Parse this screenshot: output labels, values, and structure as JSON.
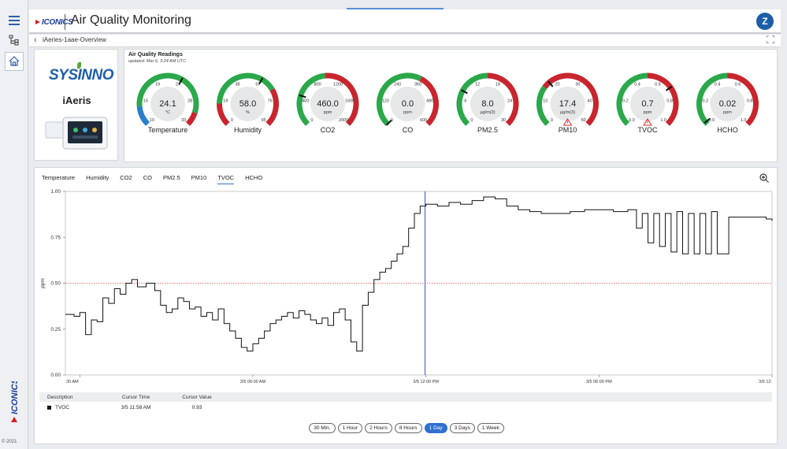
{
  "header": {
    "logo_text": "ICONICS",
    "title": "Air Quality Monitoring",
    "avatar_initial": "Z"
  },
  "breadcrumb": {
    "text": "iAeries-1aae-Overview"
  },
  "device": {
    "brand": "SYSINNO",
    "name": "iAeris"
  },
  "readings": {
    "title": "Air Quality Readings",
    "updated": "updated: Mar 6, 3:24 AM UTC",
    "gauges": [
      {
        "id": "temperature",
        "label": "Temperature",
        "value": "24.1",
        "unit": "°C",
        "min": 10,
        "max": 33,
        "ticks": [
          "10",
          "15",
          "19",
          "24",
          "28",
          "33"
        ],
        "fraction": 0.61,
        "segments": [
          [
            "#2a7fc9",
            0.15
          ],
          [
            "#2aa84a",
            0.75
          ],
          [
            "#c8252d",
            0.1
          ]
        ],
        "warning": false
      },
      {
        "id": "humidity",
        "label": "Humidity",
        "value": "58.0",
        "unit": "%",
        "min": 0,
        "max": 95,
        "ticks": [
          "0",
          "19",
          "38",
          "57",
          "76",
          "95"
        ],
        "fraction": 0.61,
        "segments": [
          [
            "#c8252d",
            0.17
          ],
          [
            "#2aa84a",
            0.55
          ],
          [
            "#c8252d",
            0.28
          ]
        ],
        "warning": false
      },
      {
        "id": "co2",
        "label": "CO2",
        "value": "460.0",
        "unit": "ppm",
        "min": 0,
        "max": 2000,
        "ticks": [
          "0",
          "400",
          "800",
          "1200",
          "1600",
          "2000"
        ],
        "fraction": 0.23,
        "segments": [
          [
            "#2aa84a",
            0.48
          ],
          [
            "#c8252d",
            0.52
          ]
        ],
        "warning": false
      },
      {
        "id": "co",
        "label": "CO",
        "value": "0.0",
        "unit": "ppm",
        "min": 0,
        "max": 600,
        "ticks": [
          "0",
          "120",
          "240",
          "360",
          "480",
          "600"
        ],
        "fraction": 0.0,
        "segments": [
          [
            "#2aa84a",
            0.6
          ],
          [
            "#c8252d",
            0.4
          ]
        ],
        "warning": false
      },
      {
        "id": "pm25",
        "label": "PM2.5",
        "value": "8.0",
        "unit": "µg/m(3)",
        "min": 0,
        "max": 30,
        "ticks": [
          "0",
          "6",
          "12",
          "18",
          "24",
          "30"
        ],
        "fraction": 0.27,
        "segments": [
          [
            "#2aa84a",
            0.5
          ],
          [
            "#c8252d",
            0.5
          ]
        ],
        "warning": false
      },
      {
        "id": "pm10",
        "label": "PM10",
        "value": "17.4",
        "unit": "µg/m(3)",
        "min": 0,
        "max": 50,
        "ticks": [
          "0",
          "10",
          "20",
          "30",
          "40",
          "50"
        ],
        "fraction": 0.35,
        "segments": [
          [
            "#2aa84a",
            0.3
          ],
          [
            "#c8252d",
            0.7
          ]
        ],
        "warning": true
      },
      {
        "id": "tvoc",
        "label": "TVOC",
        "value": "0.7",
        "unit": "ppm",
        "min": 0,
        "max": 1.0,
        "ticks": [
          "0.0",
          "0.2",
          "0.4",
          "0.6",
          "0.8",
          "1.0"
        ],
        "fraction": 0.7,
        "segments": [
          [
            "#2aa84a",
            0.5
          ],
          [
            "#c8252d",
            0.5
          ]
        ],
        "warning": true
      },
      {
        "id": "hcho",
        "label": "HCHO",
        "value": "0.02",
        "unit": "ppm",
        "min": 0,
        "max": 1.0,
        "ticks": [
          "0.0",
          "0.2",
          "0.4",
          "0.6",
          "0.8",
          "1.0"
        ],
        "fraction": 0.02,
        "segments": [
          [
            "#2aa84a",
            0.5
          ],
          [
            "#c8252d",
            0.5
          ]
        ],
        "warning": false
      }
    ]
  },
  "trend": {
    "tabs": [
      "Temperature",
      "Humidity",
      "CO2",
      "CO",
      "PM2.5",
      "PM10",
      "TVOC",
      "HCHO"
    ],
    "active_tab": "TVOC",
    "table": {
      "headers": [
        "Description",
        "Cursor Time",
        "Cursor Value"
      ],
      "rows": [
        {
          "description": "TVOC",
          "time": "3/5 11:58 AM",
          "value": "0.93"
        }
      ]
    },
    "ranges": [
      "30 Min.",
      "1 Hour",
      "2 Hours",
      "8 Hours",
      "1 Day",
      "3 Days",
      "1 Week"
    ],
    "selected_range": "1 Day"
  },
  "footer": {
    "copyright": "© 2021"
  },
  "chart_data": {
    "type": "line",
    "series": [
      {
        "values": []
      }
    ],
    "x_tick_labels": [
      "30 AM",
      "3/5 06:00 AM",
      "3/5 12:00 PM",
      "3/5 06:00 PM",
      "3/6 12:"
    ],
    "x_ticks_hours": [
      0,
      6,
      12,
      18,
      24
    ],
    "x_range_hours": [
      -0.5,
      24
    ],
    "ylabel": "ppm",
    "ylim": [
      0,
      1.0
    ],
    "y_ticks": [
      "0.00",
      "0.25",
      "0.50",
      "0.75",
      "1.00"
    ],
    "reference_line": {
      "value": 0.5,
      "color": "#e05050",
      "style": "dotted"
    },
    "cursor": {
      "x_hours": 11.97,
      "color": "#3b4fc4"
    },
    "line_color": "#111111",
    "points_hours_value": [
      [
        -0.5,
        0.33
      ],
      [
        -0.2,
        0.32
      ],
      [
        0.0,
        0.34
      ],
      [
        0.2,
        0.22
      ],
      [
        0.4,
        0.3
      ],
      [
        0.6,
        0.29
      ],
      [
        0.8,
        0.42
      ],
      [
        1.0,
        0.39
      ],
      [
        1.2,
        0.47
      ],
      [
        1.4,
        0.44
      ],
      [
        1.6,
        0.5
      ],
      [
        1.8,
        0.52
      ],
      [
        2.0,
        0.48
      ],
      [
        2.3,
        0.5
      ],
      [
        2.6,
        0.46
      ],
      [
        2.8,
        0.38
      ],
      [
        3.0,
        0.34
      ],
      [
        3.2,
        0.36
      ],
      [
        3.4,
        0.42
      ],
      [
        3.6,
        0.4
      ],
      [
        3.8,
        0.36
      ],
      [
        4.0,
        0.37
      ],
      [
        4.2,
        0.32
      ],
      [
        4.4,
        0.34
      ],
      [
        4.6,
        0.3
      ],
      [
        4.8,
        0.36
      ],
      [
        5.0,
        0.28
      ],
      [
        5.2,
        0.24
      ],
      [
        5.4,
        0.2
      ],
      [
        5.6,
        0.15
      ],
      [
        5.8,
        0.13
      ],
      [
        6.0,
        0.17
      ],
      [
        6.2,
        0.2
      ],
      [
        6.4,
        0.24
      ],
      [
        6.6,
        0.28
      ],
      [
        6.8,
        0.3
      ],
      [
        7.0,
        0.32
      ],
      [
        7.2,
        0.34
      ],
      [
        7.4,
        0.31
      ],
      [
        7.6,
        0.35
      ],
      [
        7.8,
        0.33
      ],
      [
        8.0,
        0.3
      ],
      [
        8.2,
        0.28
      ],
      [
        8.4,
        0.31
      ],
      [
        8.6,
        0.27
      ],
      [
        8.8,
        0.34
      ],
      [
        9.0,
        0.36
      ],
      [
        9.2,
        0.3
      ],
      [
        9.4,
        0.18
      ],
      [
        9.6,
        0.13
      ],
      [
        9.8,
        0.38
      ],
      [
        10.0,
        0.45
      ],
      [
        10.2,
        0.52
      ],
      [
        10.4,
        0.56
      ],
      [
        10.6,
        0.58
      ],
      [
        10.8,
        0.62
      ],
      [
        11.0,
        0.66
      ],
      [
        11.2,
        0.7
      ],
      [
        11.4,
        0.8
      ],
      [
        11.6,
        0.88
      ],
      [
        11.8,
        0.92
      ],
      [
        12.0,
        0.93
      ],
      [
        12.4,
        0.92
      ],
      [
        12.8,
        0.94
      ],
      [
        13.2,
        0.93
      ],
      [
        13.6,
        0.95
      ],
      [
        14.0,
        0.97
      ],
      [
        14.4,
        0.96
      ],
      [
        14.8,
        0.92
      ],
      [
        15.2,
        0.9
      ],
      [
        15.6,
        0.89
      ],
      [
        16.0,
        0.88
      ],
      [
        16.5,
        0.88
      ],
      [
        17.0,
        0.89
      ],
      [
        17.5,
        0.9
      ],
      [
        18.0,
        0.9
      ],
      [
        18.5,
        0.89
      ],
      [
        19.0,
        0.9
      ],
      [
        19.3,
        0.8
      ],
      [
        19.5,
        0.88
      ],
      [
        19.7,
        0.72
      ],
      [
        19.9,
        0.88
      ],
      [
        20.1,
        0.7
      ],
      [
        20.3,
        0.88
      ],
      [
        20.5,
        0.67
      ],
      [
        20.7,
        0.89
      ],
      [
        20.9,
        0.66
      ],
      [
        21.1,
        0.88
      ],
      [
        21.3,
        0.66
      ],
      [
        21.5,
        0.88
      ],
      [
        21.7,
        0.66
      ],
      [
        21.9,
        0.89
      ],
      [
        22.1,
        0.66
      ],
      [
        22.3,
        0.66
      ],
      [
        22.5,
        0.86
      ],
      [
        22.7,
        0.86
      ],
      [
        23.0,
        0.86
      ],
      [
        23.4,
        0.86
      ],
      [
        23.8,
        0.85
      ],
      [
        24.0,
        0.84
      ]
    ]
  }
}
